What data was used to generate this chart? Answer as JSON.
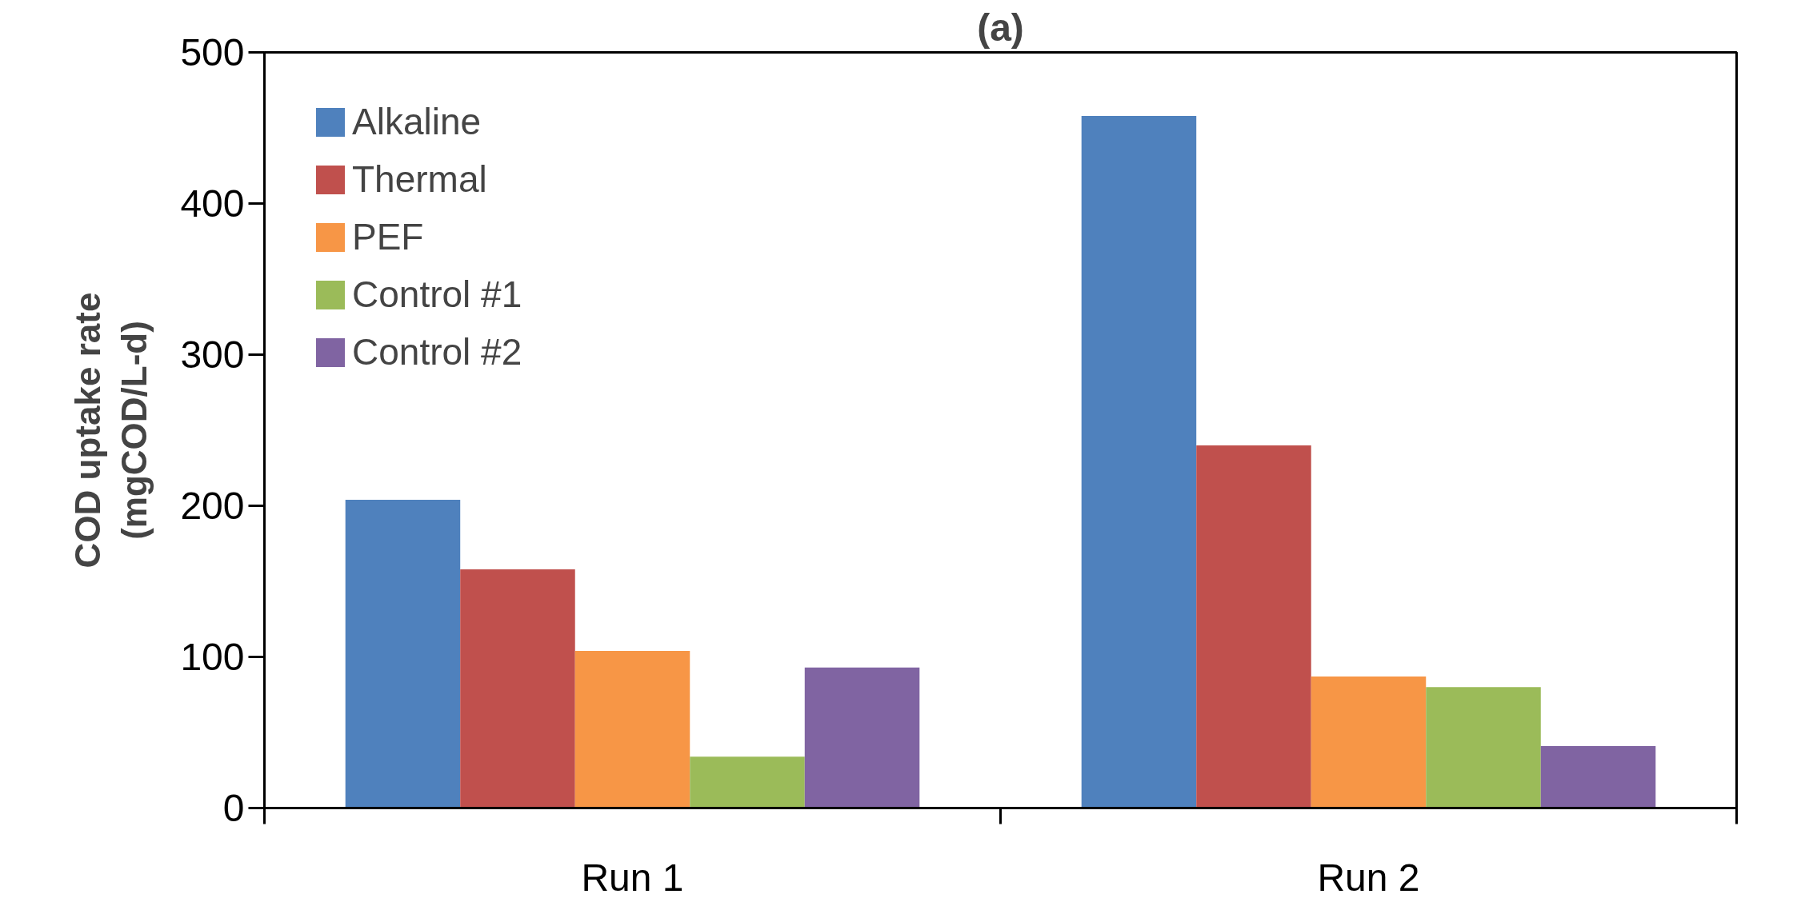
{
  "chart_data": {
    "type": "bar",
    "title": "(a)",
    "ylabel": "COD uptake rate\n(mgCOD/L-d)",
    "categories": [
      "Run 1",
      "Run 2"
    ],
    "series": [
      {
        "name": "Alkaline",
        "color": "#4f81bd",
        "values": [
          204,
          458
        ]
      },
      {
        "name": "Thermal",
        "color": "#c0504d",
        "values": [
          158,
          240
        ]
      },
      {
        "name": "PEF",
        "color": "#f79646",
        "values": [
          104,
          87
        ]
      },
      {
        "name": "Control #1",
        "color": "#9bbb59",
        "values": [
          34,
          80
        ]
      },
      {
        "name": "Control #2",
        "color": "#8064a2",
        "values": [
          93,
          41
        ]
      }
    ],
    "ylim": [
      0,
      500
    ],
    "yticks": [
      0,
      100,
      200,
      300,
      400,
      500
    ],
    "grid": false,
    "legend": "top left"
  }
}
